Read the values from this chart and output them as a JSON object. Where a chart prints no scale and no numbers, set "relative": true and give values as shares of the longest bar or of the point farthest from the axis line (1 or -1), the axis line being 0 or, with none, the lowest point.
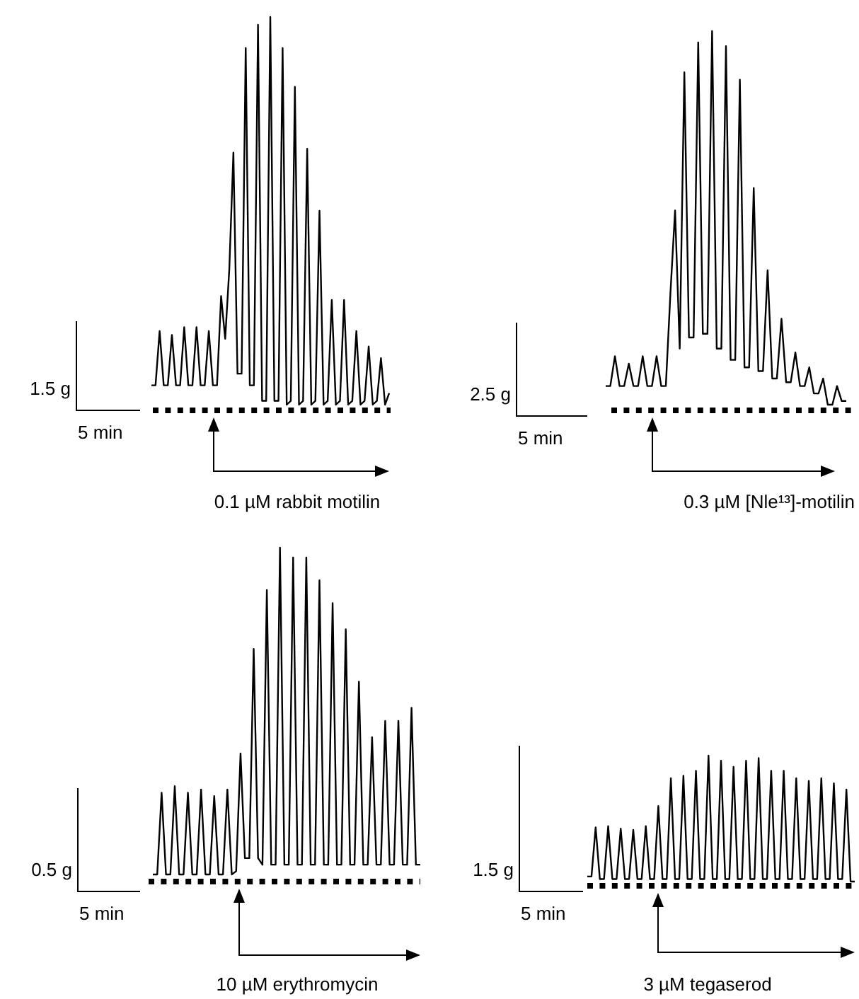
{
  "chart_data": [
    {
      "type": "line",
      "relative": true,
      "annotations": [
        "1.5 g",
        "5 min",
        "0.1 µM rabbit motilin"
      ],
      "categories": [
        null,
        null,
        null,
        null,
        null,
        null,
        null,
        null,
        null,
        null,
        null,
        null,
        null,
        null,
        null,
        null,
        null,
        null,
        null,
        null,
        null,
        null,
        null,
        null,
        null,
        null,
        null,
        null,
        null,
        null,
        null,
        null,
        null,
        null,
        null,
        null,
        null,
        null,
        null,
        null,
        null,
        null,
        null,
        null,
        null,
        null,
        null,
        null,
        null,
        null,
        null,
        null,
        null,
        null,
        null,
        null,
        null,
        null,
        null
      ],
      "series": [
        {
          "color": "#000000",
          "values": [
            0.05,
            0.05,
            0.19,
            0.05,
            0.05,
            0.18,
            0.05,
            0.05,
            0.2,
            0.05,
            0.05,
            0.2,
            0.05,
            0.05,
            0.19,
            0.05,
            0.05,
            0.28,
            0.17,
            0.35,
            0.65,
            0.08,
            0.08,
            0.92,
            0.05,
            0.05,
            0.98,
            0.01,
            0.01,
            1,
            0.01,
            0.01,
            0.92,
            0,
            0.01,
            0.82,
            0,
            0.01,
            0.66,
            0,
            0.01,
            0.5,
            0,
            0.01,
            0.27,
            0,
            0.01,
            0.27,
            0,
            0.01,
            0.19,
            0,
            0.01,
            0.15,
            0,
            0.01,
            0.12,
            0,
            0.03
          ]
        }
      ]
    },
    {
      "type": "line",
      "relative": true,
      "annotations": [
        "2.5 g",
        "5 min",
        "0.3 µM [Nle¹³]-motilin"
      ],
      "categories": [
        null,
        null,
        null,
        null,
        null,
        null,
        null,
        null,
        null,
        null,
        null,
        null,
        null,
        null,
        null,
        null,
        null,
        null,
        null,
        null,
        null,
        null,
        null,
        null,
        null,
        null,
        null,
        null,
        null,
        null,
        null,
        null,
        null,
        null,
        null,
        null,
        null,
        null,
        null,
        null,
        null,
        null,
        null,
        null,
        null,
        null,
        null,
        null,
        null,
        null,
        null,
        null,
        null
      ],
      "series": [
        {
          "color": "#000000",
          "values": [
            0.05,
            0.05,
            0.13,
            0.05,
            0.05,
            0.11,
            0.05,
            0.05,
            0.13,
            0.05,
            0.05,
            0.13,
            0.05,
            0.05,
            0.3,
            0.52,
            0.15,
            0.89,
            0.18,
            0.18,
            0.97,
            0.19,
            0.19,
            1,
            0.15,
            0.15,
            0.96,
            0.12,
            0.12,
            0.87,
            0.1,
            0.1,
            0.58,
            0.09,
            0.09,
            0.36,
            0.07,
            0.07,
            0.23,
            0.06,
            0.06,
            0.14,
            0.05,
            0.05,
            0.1,
            0.03,
            0.03,
            0.07,
            0,
            0,
            0.05,
            0.01,
            0.01
          ]
        }
      ]
    },
    {
      "type": "line",
      "relative": true,
      "annotations": [
        "0.5 g",
        "5 min",
        "10 µM erythromycin"
      ],
      "categories": [
        null,
        null,
        null,
        null,
        null,
        null,
        null,
        null,
        null,
        null,
        null,
        null,
        null,
        null,
        null,
        null,
        null,
        null,
        null,
        null,
        null,
        null,
        null,
        null,
        null,
        null,
        null,
        null,
        null,
        null,
        null,
        null,
        null,
        null,
        null,
        null,
        null,
        null,
        null,
        null,
        null,
        null,
        null,
        null,
        null,
        null,
        null,
        null,
        null,
        null,
        null,
        null,
        null,
        null,
        null,
        null,
        null,
        null,
        null,
        null,
        null,
        null
      ],
      "series": [
        {
          "color": "#000000",
          "values": [
            0,
            0,
            0.25,
            0,
            0,
            0.27,
            0,
            0,
            0.25,
            0,
            0,
            0.26,
            0,
            0,
            0.24,
            0,
            0,
            0.26,
            0,
            0.01,
            0.37,
            0.05,
            0.05,
            0.69,
            0.05,
            0.03,
            0.87,
            0.03,
            0.03,
            1,
            0.03,
            0.03,
            0.97,
            0.03,
            0.03,
            0.97,
            0.03,
            0.03,
            0.9,
            0.03,
            0.03,
            0.83,
            0.03,
            0.03,
            0.75,
            0.03,
            0.03,
            0.59,
            0.03,
            0.03,
            0.42,
            0.03,
            0.03,
            0.47,
            0.03,
            0.03,
            0.47,
            0.03,
            0.03,
            0.51,
            0.03,
            0.03
          ]
        }
      ]
    },
    {
      "type": "line",
      "relative": true,
      "annotations": [
        "1.5 g",
        "5 min",
        "3 µM tegaserod"
      ],
      "categories": [
        null,
        null,
        null,
        null,
        null,
        null,
        null,
        null,
        null,
        null,
        null,
        null,
        null,
        null,
        null,
        null,
        null,
        null,
        null,
        null,
        null,
        null,
        null,
        null,
        null,
        null,
        null,
        null,
        null,
        null,
        null,
        null,
        null,
        null,
        null,
        null,
        null,
        null,
        null,
        null,
        null,
        null,
        null,
        null,
        null,
        null,
        null,
        null,
        null,
        null,
        null,
        null,
        null,
        null,
        null,
        null,
        null,
        null,
        null,
        null,
        null,
        null,
        null,
        null,
        null
      ],
      "series": [
        {
          "color": "#000000",
          "values": [
            0.04,
            0.04,
            0.43,
            0.02,
            0.02,
            0.44,
            0.02,
            0.02,
            0.42,
            0.02,
            0.02,
            0.41,
            0.02,
            0.02,
            0.44,
            0.02,
            0.02,
            0.6,
            0.02,
            0.02,
            0.82,
            0.02,
            0.02,
            0.84,
            0.02,
            0.02,
            0.88,
            0.02,
            0.02,
            1,
            0.02,
            0.02,
            0.96,
            0.02,
            0.02,
            0.91,
            0.02,
            0.02,
            0.96,
            0.02,
            0.02,
            0.98,
            0.02,
            0.02,
            0.88,
            0.02,
            0.02,
            0.88,
            0.02,
            0.02,
            0.82,
            0.02,
            0.02,
            0.8,
            0.02,
            0.02,
            0.82,
            0.02,
            0.02,
            0.78,
            0.02,
            0.02,
            0.73,
            0,
            0
          ]
        }
      ]
    }
  ]
}
